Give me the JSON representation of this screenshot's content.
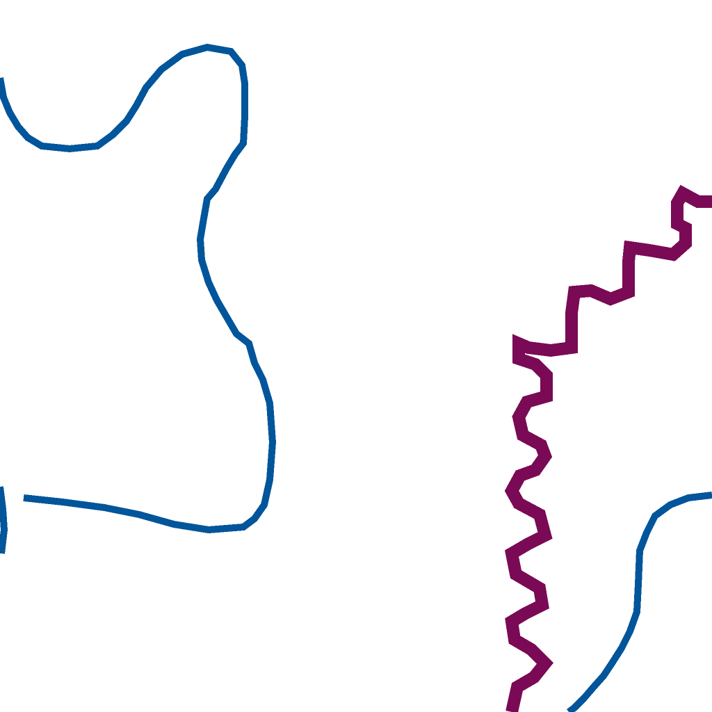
{
  "map": {
    "background_color": "#ffffff",
    "features": [
      {
        "name": "blue-route-upper-left",
        "type": "route",
        "color": "#00559b"
      },
      {
        "name": "blue-route-loop",
        "type": "route",
        "color": "#00559b"
      },
      {
        "name": "blue-route-lower-right",
        "type": "route",
        "color": "#00559b"
      },
      {
        "name": "purple-route-zigzag",
        "type": "route",
        "color": "#7a0a55"
      }
    ]
  }
}
